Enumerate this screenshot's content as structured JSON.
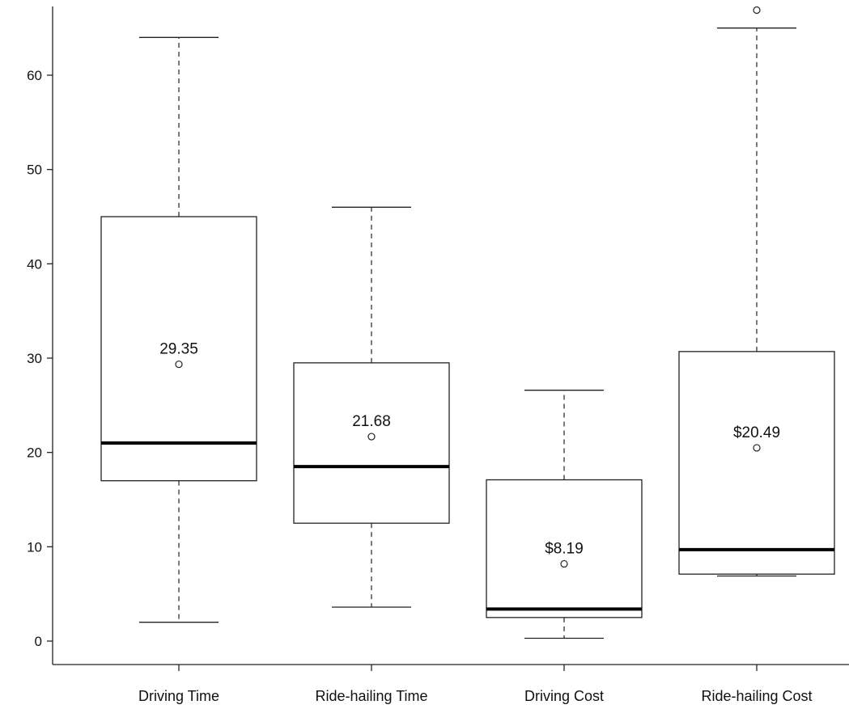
{
  "chart_data": {
    "type": "boxplot",
    "title": "",
    "xlabel": "",
    "ylabel": "",
    "ylim": [
      -2.5,
      68
    ],
    "yticks": [
      0,
      10,
      20,
      30,
      40,
      50,
      60
    ],
    "grid": false,
    "legend": "none",
    "categories": [
      "Driving Time",
      "Ride-hailing Time",
      "Driving Cost",
      "Ride-hailing Cost"
    ],
    "boxes": [
      {
        "category": "Driving Time",
        "whisker_low": 2,
        "q1": 17,
        "median": 21,
        "q3": 45,
        "whisker_high": 64,
        "mean": 29.35,
        "mean_label": "29.35",
        "outliers": []
      },
      {
        "category": "Ride-hailing Time",
        "whisker_low": 3.6,
        "q1": 12.5,
        "median": 18.5,
        "q3": 29.5,
        "whisker_high": 46,
        "mean": 21.68,
        "mean_label": "21.68",
        "outliers": []
      },
      {
        "category": "Driving Cost",
        "whisker_low": 0.3,
        "q1": 2.5,
        "median": 3.4,
        "q3": 17.1,
        "whisker_high": 26.6,
        "mean": 8.19,
        "mean_label": "$8.19",
        "outliers": []
      },
      {
        "category": "Ride-hailing Cost",
        "whisker_low": 6.9,
        "q1": 7.1,
        "median": 9.7,
        "q3": 30.7,
        "whisker_high": 65,
        "mean": 20.49,
        "mean_label": "$20.49",
        "outliers": [
          66.9
        ]
      }
    ]
  }
}
